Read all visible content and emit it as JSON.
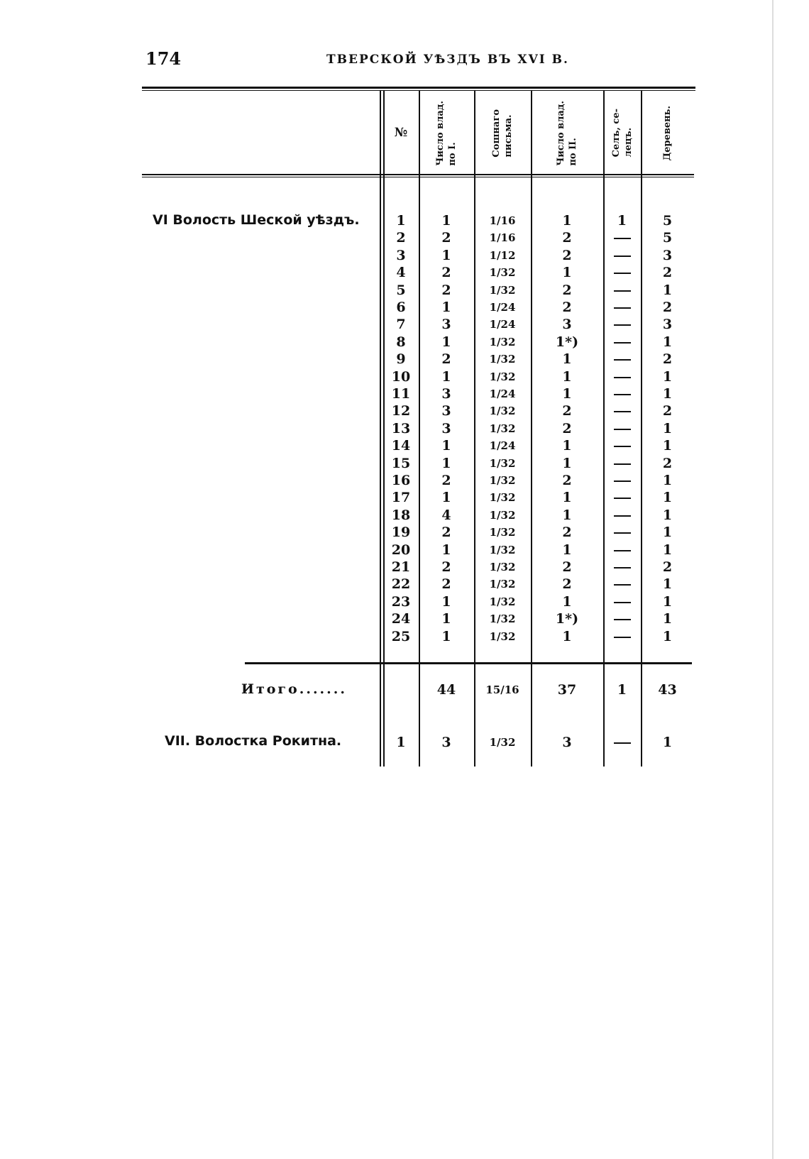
{
  "header": {
    "page_number": "174",
    "running_title": "ТВЕРСКОЙ УѢЗДЪ ВЪ XVI В."
  },
  "columns": [
    "№",
    "Число влад.\nпо I.",
    "Сошнаго\nписьма.",
    "Число влад.\nпо II.",
    "Селъ, се-\nлецъ.",
    "Деревень."
  ],
  "section_vi": {
    "label": "VI Волость Шеской уѣздъ.",
    "rows": [
      [
        "1",
        "1",
        "1/16",
        "1",
        "1",
        "5"
      ],
      [
        "2",
        "2",
        "1/16",
        "2",
        "—",
        "5"
      ],
      [
        "3",
        "1",
        "1/12",
        "2",
        "—",
        "3"
      ],
      [
        "4",
        "2",
        "1/32",
        "1",
        "—",
        "2"
      ],
      [
        "5",
        "2",
        "1/32",
        "2",
        "—",
        "1"
      ],
      [
        "6",
        "1",
        "1/24",
        "2",
        "—",
        "2"
      ],
      [
        "7",
        "3",
        "1/24",
        "3",
        "—",
        "3"
      ],
      [
        "8",
        "1",
        "1/32",
        "1*)",
        "—",
        "1"
      ],
      [
        "9",
        "2",
        "1/32",
        "1",
        "—",
        "2"
      ],
      [
        "10",
        "1",
        "1/32",
        "1",
        "—",
        "1"
      ],
      [
        "11",
        "3",
        "1/24",
        "1",
        "—",
        "1"
      ],
      [
        "12",
        "3",
        "1/32",
        "2",
        "—",
        "2"
      ],
      [
        "13",
        "3",
        "1/32",
        "2",
        "—",
        "1"
      ],
      [
        "14",
        "1",
        "1/24",
        "1",
        "—",
        "1"
      ],
      [
        "15",
        "1",
        "1/32",
        "1",
        "—",
        "2"
      ],
      [
        "16",
        "2",
        "1/32",
        "2",
        "—",
        "1"
      ],
      [
        "17",
        "1",
        "1/32",
        "1",
        "—",
        "1"
      ],
      [
        "18",
        "4",
        "1/32",
        "1",
        "—",
        "1"
      ],
      [
        "19",
        "2",
        "1/32",
        "2",
        "—",
        "1"
      ],
      [
        "20",
        "1",
        "1/32",
        "1",
        "—",
        "1"
      ],
      [
        "21",
        "2",
        "1/32",
        "2",
        "—",
        "2"
      ],
      [
        "22",
        "2",
        "1/32",
        "2",
        "—",
        "1"
      ],
      [
        "23",
        "1",
        "1/32",
        "1",
        "—",
        "1"
      ],
      [
        "24",
        "1",
        "1/32",
        "1*)",
        "—",
        "1"
      ],
      [
        "25",
        "1",
        "1/32",
        "1",
        "—",
        "1"
      ]
    ],
    "total_label": "Итого.......",
    "total": [
      "",
      "44",
      "15/16",
      "37",
      "1",
      "43"
    ]
  },
  "section_vii": {
    "label": "VII. Волостка Рокитна.",
    "row": [
      "1",
      "3",
      "1/32",
      "3",
      "—",
      "1"
    ]
  }
}
